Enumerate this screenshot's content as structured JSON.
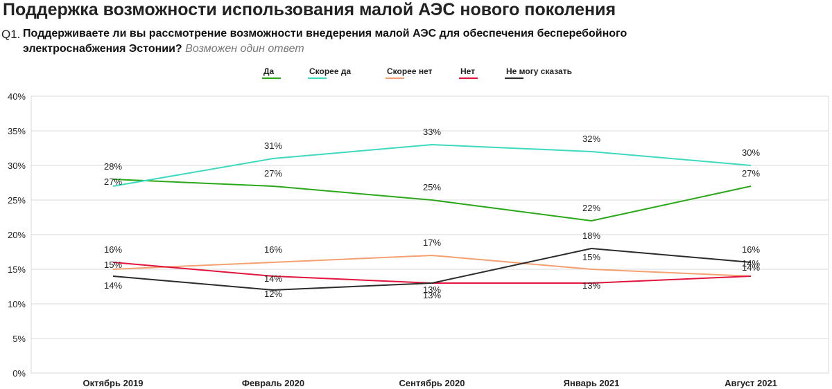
{
  "title": "Поддержка возможности использования малой АЭС нового поколения",
  "question": {
    "number": "Q1.",
    "line1": "Поддерживаете ли вы рассмотрение возможности внедерения малой АЭС для обеспечения бесперебойного",
    "line2": "электроснабжения Эстонии?",
    "note": "Возможен один ответ"
  },
  "chart_data": {
    "type": "line",
    "categories": [
      "Октябрь 2019",
      "Февраль 2020",
      "Сентябрь 2020",
      "Январь 2021",
      "Август 2021"
    ],
    "ylim": [
      0,
      40
    ],
    "yticks": [
      "0%",
      "5%",
      "10%",
      "15%",
      "20%",
      "25%",
      "30%",
      "35%",
      "40%"
    ],
    "grid": true,
    "legend_position": "top-center",
    "series": [
      {
        "name": "Да",
        "color": "#2aa81a",
        "values": [
          28,
          27,
          25,
          22,
          27
        ],
        "labels": [
          "28%",
          "27%",
          "25%",
          "22%",
          "27%"
        ]
      },
      {
        "name": "Скорее да",
        "color": "#3dd9bf",
        "values": [
          27,
          31,
          33,
          32,
          30
        ],
        "labels": [
          "27%",
          "31%",
          "33%",
          "32%",
          "30%"
        ]
      },
      {
        "name": "Скорее нет",
        "color": "#f4a070",
        "values": [
          15,
          16,
          17,
          15,
          14
        ],
        "labels": [
          "15%",
          "16%",
          "17%",
          "15%",
          "14%"
        ]
      },
      {
        "name": "Нет",
        "color": "#e0143c",
        "values": [
          16,
          14,
          13,
          13,
          14
        ],
        "labels": [
          "16%",
          "14%",
          "13%",
          "13%",
          "14%"
        ]
      },
      {
        "name": "Не могу сказать",
        "color": "#2b2b2b",
        "values": [
          14,
          12,
          13,
          18,
          16
        ],
        "labels": [
          "14%",
          "12%",
          "13%",
          "18%",
          "16%"
        ]
      }
    ]
  }
}
